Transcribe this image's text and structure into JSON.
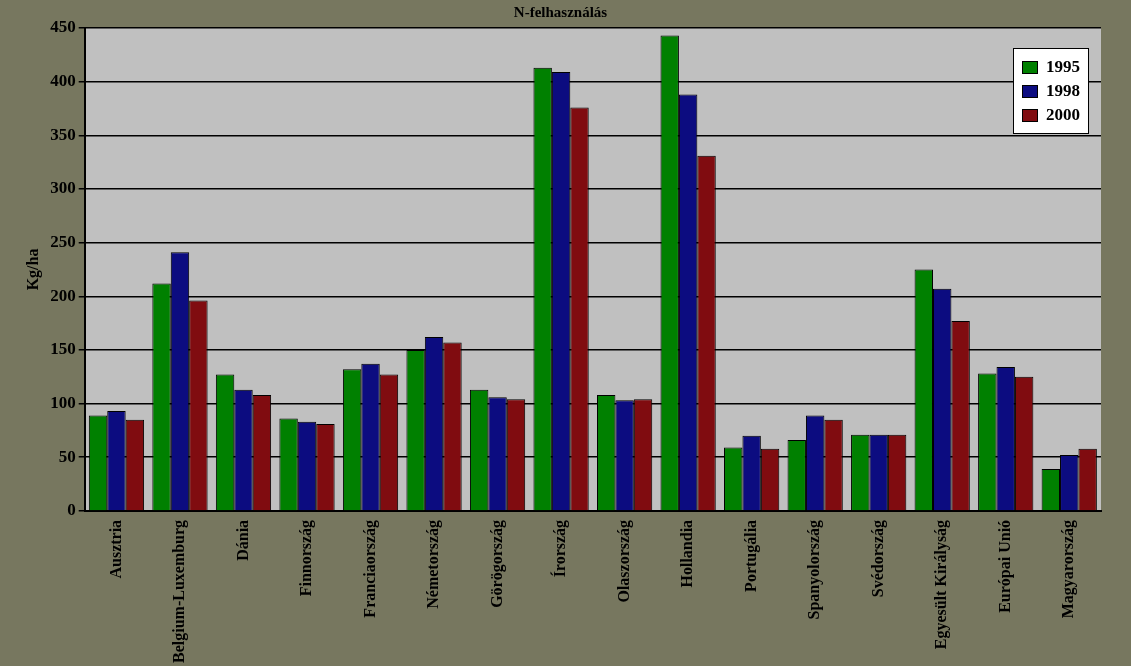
{
  "chart_data": {
    "type": "bar",
    "title": "N-felhasználás",
    "ylabel": "Kg/ha",
    "categories": [
      "Ausztria",
      "Belgium-Luxemburg",
      "Dánia",
      "Finnország",
      "Franciaország",
      "Németország",
      "Görögország",
      "Írország",
      "Olaszország",
      "Hollandia",
      "Portugália",
      "Spanyolország",
      "Svédország",
      "Egyesült Királyság",
      "Európai Unió",
      "Magyarország"
    ],
    "series": [
      {
        "name": "1995",
        "color": "#008000",
        "values": [
          89,
          212,
          127,
          86,
          132,
          150,
          113,
          413,
          108,
          443,
          59,
          66,
          71,
          225,
          128,
          39
        ]
      },
      {
        "name": "1998",
        "color": "#0c0c80",
        "values": [
          93,
          241,
          113,
          83,
          137,
          162,
          106,
          409,
          103,
          388,
          70,
          89,
          71,
          207,
          134,
          52
        ]
      },
      {
        "name": "2000",
        "color": "#800c10",
        "values": [
          85,
          196,
          108,
          81,
          127,
          157,
          104,
          376,
          104,
          331,
          58,
          85,
          71,
          177,
          125,
          58
        ]
      }
    ],
    "ylim": [
      0,
      450
    ],
    "yticks": [
      0,
      50,
      100,
      150,
      200,
      250,
      300,
      350,
      400,
      450
    ],
    "grid": "y",
    "legend": "top right"
  }
}
